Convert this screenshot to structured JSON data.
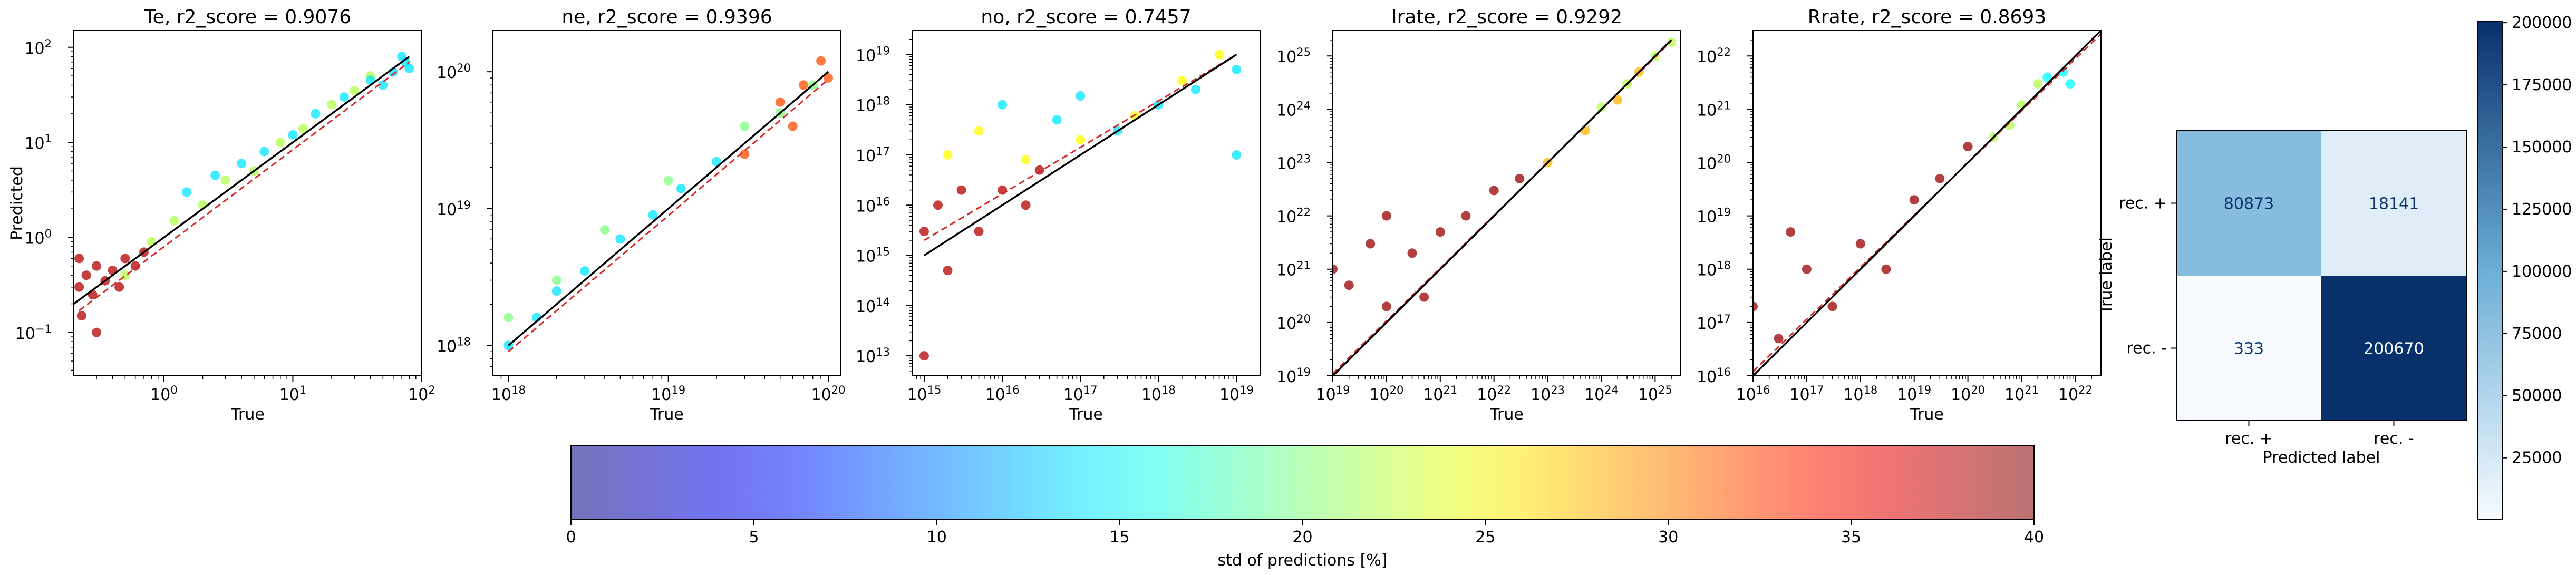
{
  "chart_data": [
    {
      "type": "scatter",
      "title": "Te, r2_score = 0.9076",
      "xlabel": "True",
      "ylabel": "Predicted",
      "xscale": "log",
      "yscale": "log",
      "xlim": [
        0.2,
        100
      ],
      "ylim": [
        0.035,
        150
      ],
      "xticks": [
        {
          "v": 1,
          "b": "10",
          "e": "0"
        },
        {
          "v": 10,
          "b": "10",
          "e": "1"
        },
        {
          "v": 100,
          "b": "10",
          "e": "2"
        }
      ],
      "yticks": [
        {
          "v": 0.1,
          "b": "10",
          "e": "−1"
        },
        {
          "v": 1,
          "b": "10",
          "e": "0"
        },
        {
          "v": 10,
          "b": "10",
          "e": "1"
        },
        {
          "v": 100,
          "b": "10",
          "e": "2"
        }
      ],
      "identity_line": [
        [
          0.2,
          0.2
        ],
        [
          80,
          80
        ]
      ],
      "fit_line": [
        [
          0.22,
          0.17
        ],
        [
          80,
          70
        ]
      ],
      "series": [
        {
          "color_std_pct": 38,
          "points": [
            [
              0.22,
              0.3
            ],
            [
              0.22,
              0.6
            ],
            [
              0.23,
              0.15
            ],
            [
              0.25,
              0.4
            ],
            [
              0.28,
              0.25
            ],
            [
              0.3,
              0.5
            ],
            [
              0.3,
              0.1
            ],
            [
              0.35,
              0.35
            ],
            [
              0.4,
              0.45
            ],
            [
              0.45,
              0.3
            ],
            [
              0.5,
              0.6
            ],
            [
              0.6,
              0.5
            ],
            [
              0.7,
              0.7
            ]
          ]
        },
        {
          "color_std_pct": 22,
          "points": [
            [
              0.5,
              0.4
            ],
            [
              0.8,
              0.9
            ],
            [
              1.2,
              1.5
            ],
            [
              2,
              2.2
            ],
            [
              3,
              4
            ],
            [
              5,
              5
            ],
            [
              8,
              10
            ],
            [
              12,
              14
            ],
            [
              20,
              25
            ],
            [
              30,
              35
            ],
            [
              40,
              50
            ]
          ]
        },
        {
          "color_std_pct": 14,
          "points": [
            [
              1.5,
              3
            ],
            [
              2.5,
              4.5
            ],
            [
              4,
              6
            ],
            [
              6,
              8
            ],
            [
              10,
              12
            ],
            [
              15,
              20
            ],
            [
              25,
              30
            ],
            [
              40,
              45
            ],
            [
              60,
              55
            ],
            [
              75,
              70
            ],
            [
              80,
              60
            ],
            [
              50,
              40
            ],
            [
              70,
              80
            ]
          ]
        }
      ]
    },
    {
      "type": "scatter",
      "title": "ne, r2_score = 0.9396",
      "xlabel": "True",
      "ylabel": "",
      "xscale": "log",
      "yscale": "log",
      "xlim": [
        8e+17,
        1.2e+20
      ],
      "ylim": [
        6e+17,
        2e+20
      ],
      "xticks": [
        {
          "v": 1e+18,
          "b": "10",
          "e": "18"
        },
        {
          "v": 1e+19,
          "b": "10",
          "e": "19"
        },
        {
          "v": 1e+20,
          "b": "10",
          "e": "20"
        }
      ],
      "yticks": [
        {
          "v": 1e+18,
          "b": "10",
          "e": "18"
        },
        {
          "v": 1e+19,
          "b": "10",
          "e": "19"
        },
        {
          "v": 1e+20,
          "b": "10",
          "e": "20"
        }
      ],
      "identity_line": [
        [
          1e+18,
          1e+18
        ],
        [
          1e+20,
          1e+20
        ]
      ],
      "fit_line": [
        [
          1e+18,
          9e+17
        ],
        [
          1e+20,
          8.8e+19
        ]
      ],
      "series": [
        {
          "color_std_pct": 14,
          "points": [
            [
              1e+18,
              1e+18
            ],
            [
              1.5e+18,
              1.6e+18
            ],
            [
              2e+18,
              2.5e+18
            ],
            [
              3e+18,
              3.5e+18
            ],
            [
              5e+18,
              6e+18
            ],
            [
              8e+18,
              9e+18
            ],
            [
              1.2e+19,
              1.4e+19
            ],
            [
              2e+19,
              2.2e+19
            ]
          ]
        },
        {
          "color_std_pct": 20,
          "points": [
            [
              1e+18,
              1.6e+18
            ],
            [
              2e+18,
              3e+18
            ],
            [
              4e+18,
              7e+18
            ],
            [
              1e+19,
              1.6e+19
            ],
            [
              3e+19,
              4e+19
            ],
            [
              5e+19,
              5e+19
            ],
            [
              8e+19,
              8e+19
            ]
          ]
        },
        {
          "color_std_pct": 32,
          "points": [
            [
              3e+19,
              2.5e+19
            ],
            [
              5e+19,
              6e+19
            ],
            [
              7e+19,
              8e+19
            ],
            [
              9e+19,
              1.2e+20
            ],
            [
              1e+20,
              9e+19
            ],
            [
              6e+19,
              4e+19
            ]
          ]
        }
      ]
    },
    {
      "type": "scatter",
      "title": "no, r2_score = 0.7457",
      "xlabel": "True",
      "ylabel": "",
      "xscale": "log",
      "yscale": "log",
      "xlim": [
        700000000000000.0,
        2e+19
      ],
      "ylim": [
        4000000000000.0,
        3e+19
      ],
      "xticks": [
        {
          "v": 1000000000000000.0,
          "b": "10",
          "e": "15"
        },
        {
          "v": 1e+16,
          "b": "10",
          "e": "16"
        },
        {
          "v": 1e+17,
          "b": "10",
          "e": "17"
        },
        {
          "v": 1e+18,
          "b": "10",
          "e": "18"
        },
        {
          "v": 1e+19,
          "b": "10",
          "e": "19"
        }
      ],
      "yticks": [
        {
          "v": 10000000000000.0,
          "b": "10",
          "e": "13"
        },
        {
          "v": 100000000000000.0,
          "b": "10",
          "e": "14"
        },
        {
          "v": 1000000000000000.0,
          "b": "10",
          "e": "15"
        },
        {
          "v": 1e+16,
          "b": "10",
          "e": "16"
        },
        {
          "v": 1e+17,
          "b": "10",
          "e": "17"
        },
        {
          "v": 1e+18,
          "b": "10",
          "e": "18"
        },
        {
          "v": 1e+19,
          "b": "10",
          "e": "19"
        }
      ],
      "identity_line": [
        [
          1000000000000000.0,
          1000000000000000.0
        ],
        [
          1e+19,
          1e+19
        ]
      ],
      "fit_line": [
        [
          1000000000000000.0,
          2000000000000000.0
        ],
        [
          1e+19,
          1e+19
        ]
      ],
      "series": [
        {
          "color_std_pct": 38,
          "points": [
            [
              1000000000000000.0,
              3000000000000000.0
            ],
            [
              1500000000000000.0,
              1e+16
            ],
            [
              2000000000000000.0,
              500000000000000.0
            ],
            [
              3000000000000000.0,
              2e+16
            ],
            [
              5000000000000000.0,
              3000000000000000.0
            ],
            [
              1e+16,
              2e+16
            ],
            [
              2e+16,
              1e+16
            ],
            [
              3e+16,
              5e+16
            ],
            [
              1000000000000000.0,
              10000000000000.0
            ]
          ]
        },
        {
          "color_std_pct": 14,
          "points": [
            [
              1e+16,
              1e+18
            ],
            [
              5e+16,
              5e+17
            ],
            [
              1e+17,
              1.5e+18
            ],
            [
              3e+17,
              3e+17
            ],
            [
              1e+18,
              1e+18
            ],
            [
              3e+18,
              2e+18
            ],
            [
              1e+19,
              5e+18
            ],
            [
              1e+19,
              1e+17
            ]
          ]
        },
        {
          "color_std_pct": 25,
          "points": [
            [
              2000000000000000.0,
              1e+17
            ],
            [
              5000000000000000.0,
              3e+17
            ],
            [
              2e+16,
              8e+16
            ],
            [
              1e+17,
              2e+17
            ],
            [
              5e+17,
              6e+17
            ],
            [
              2e+18,
              3e+18
            ],
            [
              6e+18,
              1e+19
            ]
          ]
        }
      ]
    },
    {
      "type": "scatter",
      "title": "Irate, r2_score = 0.9292",
      "xlabel": "True",
      "ylabel": "",
      "xscale": "log",
      "yscale": "log",
      "xlim": [
        1e+19,
        3e+25
      ],
      "ylim": [
        1e+19,
        3e+25
      ],
      "xticks": [
        {
          "v": 1e+19,
          "b": "10",
          "e": "19"
        },
        {
          "v": 1e+20,
          "b": "10",
          "e": "20"
        },
        {
          "v": 1e+21,
          "b": "10",
          "e": "21"
        },
        {
          "v": 1e+22,
          "b": "10",
          "e": "22"
        },
        {
          "v": 1e+23,
          "b": "10",
          "e": "23"
        },
        {
          "v": 1e+24,
          "b": "10",
          "e": "24"
        },
        {
          "v": 1e+25,
          "b": "10",
          "e": "25"
        }
      ],
      "yticks": [
        {
          "v": 1e+19,
          "b": "10",
          "e": "19"
        },
        {
          "v": 1e+20,
          "b": "10",
          "e": "20"
        },
        {
          "v": 1e+21,
          "b": "10",
          "e": "21"
        },
        {
          "v": 1e+22,
          "b": "10",
          "e": "22"
        },
        {
          "v": 1e+23,
          "b": "10",
          "e": "23"
        },
        {
          "v": 1e+24,
          "b": "10",
          "e": "24"
        },
        {
          "v": 1e+25,
          "b": "10",
          "e": "25"
        }
      ],
      "identity_line": [
        [
          1e+19,
          1e+19
        ],
        [
          2e+25,
          2e+25
        ]
      ],
      "fit_line": [
        [
          1e+19,
          1.1e+19
        ],
        [
          2e+25,
          1.9e+25
        ]
      ],
      "series": [
        {
          "color_std_pct": 39,
          "points": [
            [
              1e+19,
              1e+21
            ],
            [
              2e+19,
              5e+20
            ],
            [
              5e+19,
              3e+21
            ],
            [
              1e+20,
              1e+22
            ],
            [
              3e+20,
              2e+21
            ],
            [
              1e+21,
              5e+21
            ],
            [
              3e+21,
              1e+22
            ],
            [
              1e+22,
              3e+22
            ],
            [
              3e+22,
              5e+22
            ],
            [
              1e+20,
              2e+20
            ],
            [
              5e+20,
              3e+20
            ]
          ]
        },
        {
          "color_std_pct": 28,
          "points": [
            [
              1e+23,
              1e+23
            ],
            [
              5e+23,
              4e+23
            ],
            [
              2e+24,
              1.5e+24
            ],
            [
              5e+24,
              5e+24
            ]
          ]
        },
        {
          "color_std_pct": 22,
          "points": [
            [
              1e+24,
              1.1e+24
            ],
            [
              3e+24,
              3e+24
            ],
            [
              1e+25,
              1e+25
            ],
            [
              2e+25,
              1.8e+25
            ]
          ]
        }
      ]
    },
    {
      "type": "scatter",
      "title": "Rrate, r2_score = 0.8693",
      "xlabel": "True",
      "ylabel": "",
      "xscale": "log",
      "yscale": "log",
      "xlim": [
        1e+16,
        3e+22
      ],
      "ylim": [
        1e+16,
        3e+22
      ],
      "xticks": [
        {
          "v": 1e+16,
          "b": "10",
          "e": "16"
        },
        {
          "v": 1e+17,
          "b": "10",
          "e": "17"
        },
        {
          "v": 1e+18,
          "b": "10",
          "e": "18"
        },
        {
          "v": 1e+19,
          "b": "10",
          "e": "19"
        },
        {
          "v": 1e+20,
          "b": "10",
          "e": "20"
        },
        {
          "v": 1e+21,
          "b": "10",
          "e": "21"
        },
        {
          "v": 1e+22,
          "b": "10",
          "e": "22"
        }
      ],
      "yticks": [
        {
          "v": 1e+16,
          "b": "10",
          "e": "16"
        },
        {
          "v": 1e+17,
          "b": "10",
          "e": "17"
        },
        {
          "v": 1e+18,
          "b": "10",
          "e": "18"
        },
        {
          "v": 1e+19,
          "b": "10",
          "e": "19"
        },
        {
          "v": 1e+20,
          "b": "10",
          "e": "20"
        },
        {
          "v": 1e+21,
          "b": "10",
          "e": "21"
        },
        {
          "v": 1e+22,
          "b": "10",
          "e": "22"
        }
      ],
      "identity_line": [
        [
          1e+16,
          1e+16
        ],
        [
          3e+22,
          3e+22
        ]
      ],
      "fit_line": [
        [
          1e+16,
          1.2e+16
        ],
        [
          3e+22,
          2.6e+22
        ]
      ],
      "series": [
        {
          "color_std_pct": 39,
          "points": [
            [
              1e+16,
              2e+17
            ],
            [
              3e+16,
              5e+16
            ],
            [
              1e+17,
              1e+18
            ],
            [
              3e+17,
              2e+17
            ],
            [
              1e+18,
              3e+18
            ],
            [
              3e+18,
              1e+18
            ],
            [
              1e+19,
              2e+19
            ],
            [
              3e+19,
              5e+19
            ],
            [
              1e+20,
              2e+20
            ],
            [
              5e+16,
              5e+18
            ]
          ]
        },
        {
          "color_std_pct": 22,
          "points": [
            [
              3e+20,
              3e+20
            ],
            [
              6e+20,
              5e+20
            ],
            [
              1e+21,
              1.2e+21
            ],
            [
              2e+21,
              3e+21
            ]
          ]
        },
        {
          "color_std_pct": 15,
          "points": [
            [
              3e+21,
              4e+21
            ],
            [
              6e+21,
              5e+21
            ],
            [
              8e+21,
              3e+21
            ]
          ]
        }
      ]
    },
    {
      "type": "heatmap",
      "title": "",
      "xlabel": "Predicted label",
      "ylabel": "True label",
      "x_categories": [
        "rec. +",
        "rec. -"
      ],
      "y_categories": [
        "rec. +",
        "rec. -"
      ],
      "values": [
        [
          80873,
          18141
        ],
        [
          333,
          200670
        ]
      ],
      "value_labels": [
        [
          "80873",
          "18141"
        ],
        [
          "333",
          "200670"
        ]
      ],
      "colormap": "Blues",
      "clim": [
        333,
        200670
      ],
      "colorbar_ticks": [
        {
          "v": 25000,
          "label": "25000"
        },
        {
          "v": 50000,
          "label": "50000"
        },
        {
          "v": 75000,
          "label": "75000"
        },
        {
          "v": 100000,
          "label": "100000"
        },
        {
          "v": 125000,
          "label": "125000"
        },
        {
          "v": 150000,
          "label": "150000"
        },
        {
          "v": 175000,
          "label": "175000"
        },
        {
          "v": 200000,
          "label": "200000"
        }
      ]
    }
  ],
  "colorbar": {
    "label": "std of predictions [%]",
    "range": [
      0,
      40
    ],
    "colormap": "jet",
    "alpha": 0.5,
    "ticks": [
      {
        "v": 0,
        "label": "0"
      },
      {
        "v": 5,
        "label": "5"
      },
      {
        "v": 10,
        "label": "10"
      },
      {
        "v": 15,
        "label": "15"
      },
      {
        "v": 20,
        "label": "20"
      },
      {
        "v": 25,
        "label": "25"
      },
      {
        "v": 30,
        "label": "30"
      },
      {
        "v": 35,
        "label": "35"
      },
      {
        "v": 40,
        "label": "40"
      }
    ]
  },
  "colors": {
    "identity_line": "#000000",
    "fit_line": "#d62728"
  }
}
